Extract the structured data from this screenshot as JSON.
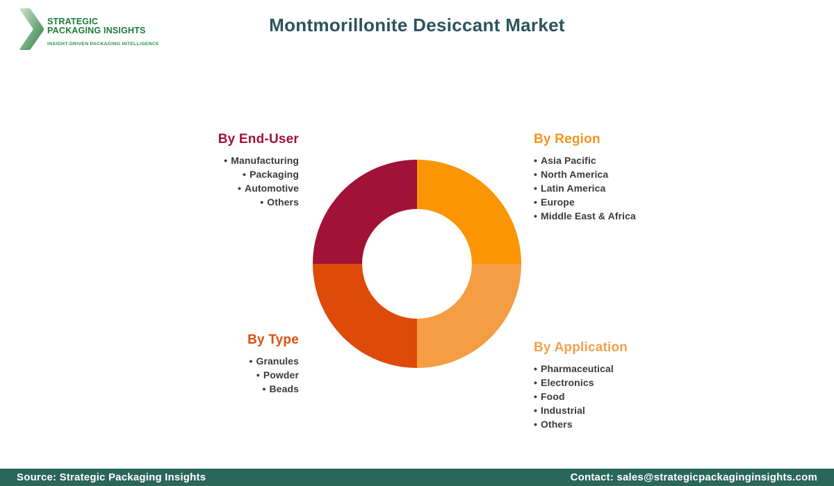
{
  "logo": {
    "title_line1": "STRATEGIC",
    "title_line2": "PACKAGING INSIGHTS",
    "tagline": "INSIGHT-DRIVEN PACKAGING INTELLIGENCE",
    "text_color": "#1b7a38",
    "chevron_gradient": [
      "#cde3cc",
      "#2f7d46"
    ]
  },
  "header": {
    "title": "Montmorillonite Desiccant Market",
    "color": "#2b545c"
  },
  "chart_data": {
    "type": "pie",
    "donut": true,
    "title": "Montmorillonite Desiccant Market segmentation donut",
    "outer_radius": 150,
    "inner_radius": 79,
    "start_angle_deg": 0,
    "direction": "clockwise",
    "legend_position": "around-chart",
    "segments": [
      {
        "label": "By Region",
        "value": 25,
        "color": "#FB9504"
      },
      {
        "label": "By Application",
        "value": 25,
        "color": "#F49D42"
      },
      {
        "label": "By Type",
        "value": 25,
        "color": "#DD4A0A"
      },
      {
        "label": "By End-User",
        "value": 25,
        "color": "#A11236"
      }
    ]
  },
  "categories": [
    {
      "title": "By End-User",
      "color": "#A11236",
      "align": "right",
      "items": [
        "Manufacturing",
        "Packaging",
        "Automotive",
        "Others"
      ]
    },
    {
      "title": "By Region",
      "color": "#F7941E",
      "align": "left",
      "items": [
        "Asia Pacific",
        "North America",
        "Latin America",
        "Europe",
        "Middle East & Africa"
      ]
    },
    {
      "title": "By Type",
      "color": "#E04E0B",
      "align": "right",
      "items": [
        "Granules",
        "Powder",
        "Beads"
      ]
    },
    {
      "title": "By Application",
      "color": "#F5A04C",
      "align": "left",
      "items": [
        "Pharmaceutical",
        "Electronics",
        "Food",
        "Industrial",
        "Others"
      ]
    }
  ],
  "footer": {
    "source": "Source: Strategic Packaging Insights",
    "contact": "Contact: sales@strategicpackaginginsights.com",
    "bg": "#2b665a"
  },
  "bullet_glyph": "•"
}
